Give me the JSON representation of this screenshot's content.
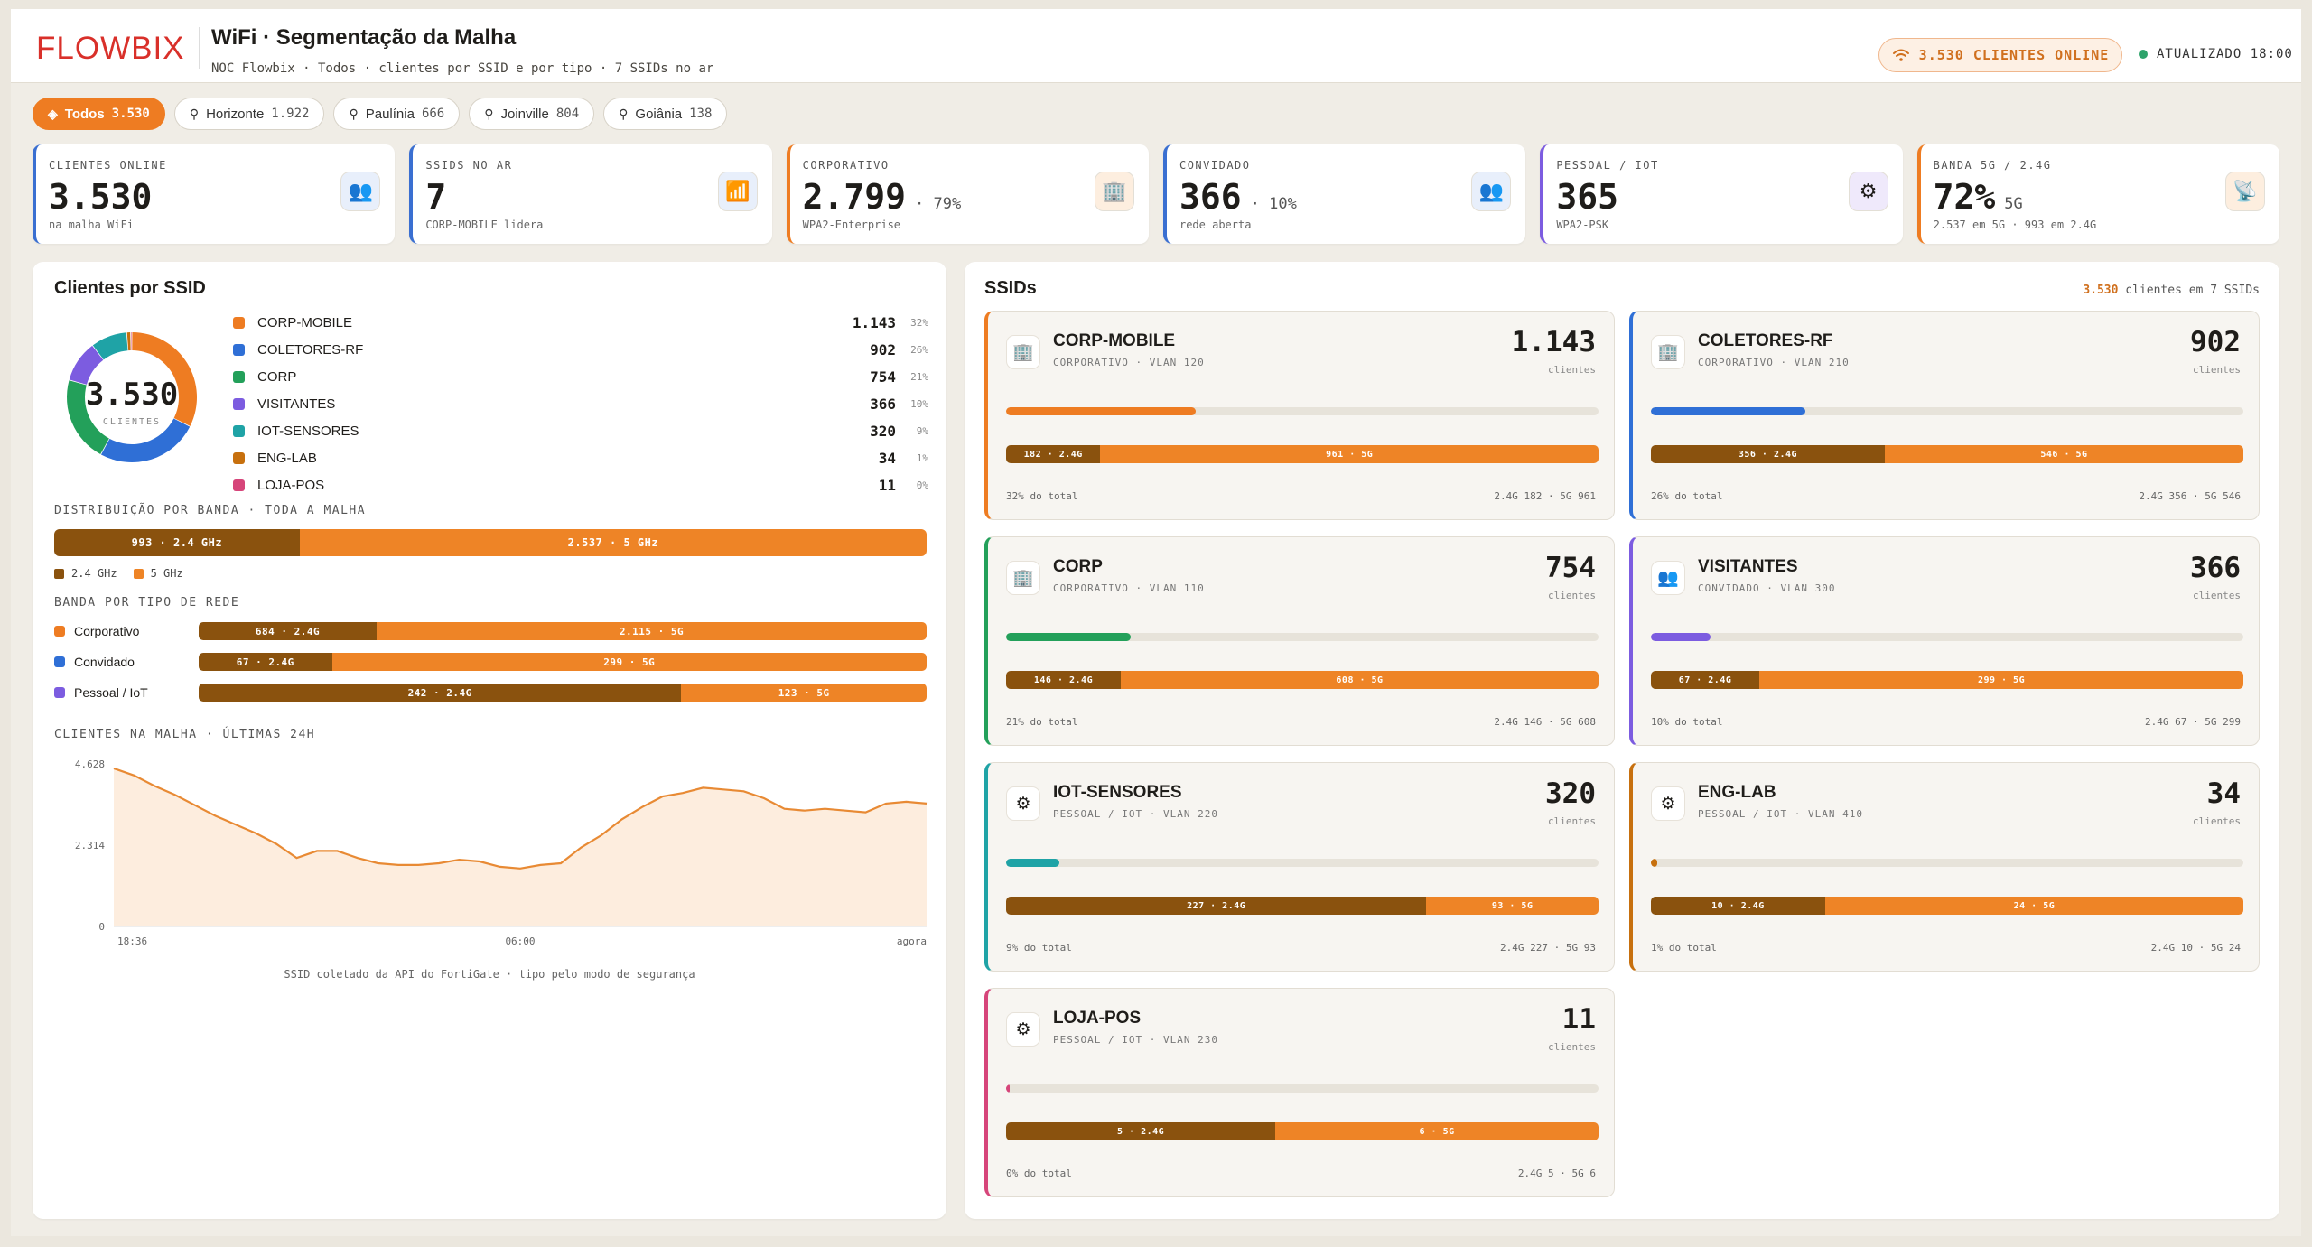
{
  "header": {
    "logo": "FLOWBIX",
    "title": "WiFi · Segmentação da Malha",
    "subtitle": "NOC Flowbix · Todos · clientes por SSID e por tipo · 7 SSIDs no ar",
    "online_pill": "3.530 CLIENTES ONLINE",
    "updated": "ATUALIZADO 18:00"
  },
  "filters": [
    {
      "label": "Todos",
      "count": "3.530",
      "icon": "layers-icon",
      "active": true
    },
    {
      "label": "Horizonte",
      "count": "1.922",
      "icon": "pin-icon"
    },
    {
      "label": "Paulínia",
      "count": "666",
      "icon": "pin-icon"
    },
    {
      "label": "Joinville",
      "count": "804",
      "icon": "pin-icon"
    },
    {
      "label": "Goiânia",
      "count": "138",
      "icon": "pin-icon"
    }
  ],
  "kpis": [
    {
      "label": "CLIENTES ONLINE",
      "value": "3.530",
      "extra": "",
      "sub": "na malha WiFi",
      "icon": "users-icon",
      "color": "#3a6fd1"
    },
    {
      "label": "SSIDS NO AR",
      "value": "7",
      "extra": "",
      "sub": "CORP-MOBILE lidera",
      "icon": "wifi-icon",
      "color": "#3a6fd1"
    },
    {
      "label": "CORPORATIVO",
      "value": "2.799",
      "extra": "· 79%",
      "sub": "WPA2-Enterprise",
      "icon": "building-icon",
      "color": "#ee7c22"
    },
    {
      "label": "CONVIDADO",
      "value": "366",
      "extra": "· 10%",
      "sub": "rede aberta",
      "icon": "guests-icon",
      "color": "#3a6fd1"
    },
    {
      "label": "PESSOAL / IOT",
      "value": "365",
      "extra": "",
      "sub": "WPA2-PSK",
      "icon": "chip-icon",
      "color": "#7c5ce0"
    },
    {
      "label": "BANDA 5G / 2.4G",
      "value": "72%",
      "extra": "5G",
      "sub": "2.537 em 5G · 993 em 2.4G",
      "icon": "antenna-icon",
      "color": "#ee7c22"
    }
  ],
  "left": {
    "title": "Clientes por SSID",
    "donut_value": "3.530",
    "donut_label": "CLIENTES",
    "ssids": [
      {
        "name": "CORP-MOBILE",
        "value": "1.143",
        "pct": "32%",
        "n": 1143,
        "color": "#ee7c22"
      },
      {
        "name": "COLETORES-RF",
        "value": "902",
        "pct": "26%",
        "n": 902,
        "color": "#2f6fd6"
      },
      {
        "name": "CORP",
        "value": "754",
        "pct": "21%",
        "n": 754,
        "color": "#23a05a"
      },
      {
        "name": "VISITANTES",
        "value": "366",
        "pct": "10%",
        "n": 366,
        "color": "#7c5ce0"
      },
      {
        "name": "IOT-SENSORES",
        "value": "320",
        "pct": "9%",
        "n": 320,
        "color": "#1fa3a6"
      },
      {
        "name": "ENG-LAB",
        "value": "34",
        "pct": "1%",
        "n": 34,
        "color": "#c7700e"
      },
      {
        "name": "LOJA-POS",
        "value": "11",
        "pct": "0%",
        "n": 11,
        "color": "#d6457a"
      }
    ],
    "band_title": "DISTRIBUIÇÃO POR BANDA · TODA A MALHA",
    "band": {
      "b24": 993,
      "b5": 2537,
      "b24_label": "993 · 2.4 GHz",
      "b5_label": "2.537 · 5 GHz"
    },
    "band_legend": [
      "2.4 GHz",
      "5 GHz"
    ],
    "types_title": "BANDA POR TIPO DE REDE",
    "types": [
      {
        "name": "Corporativo",
        "color": "#ee7c22",
        "b24": 684,
        "b5": 2115,
        "l24": "684 · 2.4G",
        "l5": "2.115 · 5G"
      },
      {
        "name": "Convidado",
        "color": "#2f6fd6",
        "b24": 67,
        "b5": 299,
        "l24": "67 · 2.4G",
        "l5": "299 · 5G"
      },
      {
        "name": "Pessoal / IoT",
        "color": "#7c5ce0",
        "b24": 242,
        "b5": 123,
        "l24": "242 · 2.4G",
        "l5": "123 · 5G"
      }
    ],
    "trend_title": "CLIENTES NA MALHA · ÚLTIMAS 24H",
    "footnote": "SSID coletado da API do FortiGate · tipo pelo modo de segurança"
  },
  "chart_data": {
    "type": "area",
    "title": "CLIENTES NA MALHA · ÚLTIMAS 24H",
    "x_ticks": [
      "18:36",
      "06:00",
      "agora"
    ],
    "y_ticks": [
      "4.628",
      "2.314",
      "0"
    ],
    "ylim": [
      0,
      4628
    ],
    "y": [
      4500,
      4300,
      4000,
      3750,
      3450,
      3150,
      2900,
      2650,
      2350,
      1950,
      2150,
      2150,
      1950,
      1800,
      1750,
      1750,
      1800,
      1900,
      1850,
      1700,
      1650,
      1750,
      1800,
      2250,
      2600,
      3050,
      3400,
      3700,
      3800,
      3950,
      3900,
      3850,
      3650,
      3350,
      3300,
      3350,
      3300,
      3250,
      3500,
      3550,
      3500
    ],
    "grid": false
  },
  "right": {
    "title": "SSIDs",
    "summary_num": "3.530",
    "summary_text": "clientes em 7 SSIDs",
    "cards": [
      {
        "name": "CORP-MOBILE",
        "sub": "CORPORATIVO · VLAN 120",
        "value": "1.143",
        "unit": "clientes",
        "share": 0.32,
        "b24": 182,
        "b5": 961,
        "l24": "182 · 2.4G",
        "l5": "961 · 5G",
        "foot": "32% do total",
        "foot2": "2.4G 182 · 5G 961",
        "color": "#ee7c22",
        "icon": "building-icon"
      },
      {
        "name": "COLETORES-RF",
        "sub": "CORPORATIVO · VLAN 210",
        "value": "902",
        "unit": "clientes",
        "share": 0.26,
        "b24": 356,
        "b5": 546,
        "l24": "356 · 2.4G",
        "l5": "546 · 5G",
        "foot": "26% do total",
        "foot2": "2.4G 356 · 5G 546",
        "color": "#2f6fd6",
        "icon": "building-icon"
      },
      {
        "name": "CORP",
        "sub": "CORPORATIVO · VLAN 110",
        "value": "754",
        "unit": "clientes",
        "share": 0.21,
        "b24": 146,
        "b5": 608,
        "l24": "146 · 2.4G",
        "l5": "608 · 5G",
        "foot": "21% do total",
        "foot2": "2.4G 146 · 5G 608",
        "color": "#23a05a",
        "icon": "building-icon"
      },
      {
        "name": "VISITANTES",
        "sub": "CONVIDADO · VLAN 300",
        "value": "366",
        "unit": "clientes",
        "share": 0.1,
        "b24": 67,
        "b5": 299,
        "l24": "67 · 2.4G",
        "l5": "299 · 5G",
        "foot": "10% do total",
        "foot2": "2.4G 67 · 5G 299",
        "color": "#7c5ce0",
        "icon": "guests-icon"
      },
      {
        "name": "IOT-SENSORES",
        "sub": "PESSOAL / IOT · VLAN 220",
        "value": "320",
        "unit": "clientes",
        "share": 0.09,
        "b24": 227,
        "b5": 93,
        "l24": "227 · 2.4G",
        "l5": "93 · 5G",
        "foot": "9% do total",
        "foot2": "2.4G 227 · 5G 93",
        "color": "#1fa3a6",
        "icon": "chip-icon"
      },
      {
        "name": "ENG-LAB",
        "sub": "PESSOAL / IOT · VLAN 410",
        "value": "34",
        "unit": "clientes",
        "share": 0.01,
        "b24": 10,
        "b5": 24,
        "l24": "10 · 2.4G",
        "l5": "24 · 5G",
        "foot": "1% do total",
        "foot2": "2.4G 10 · 5G 24",
        "color": "#c7700e",
        "icon": "chip-icon"
      },
      {
        "name": "LOJA-POS",
        "sub": "PESSOAL / IOT · VLAN 230",
        "value": "11",
        "unit": "clientes",
        "share": 0.003,
        "b24": 5,
        "b5": 6,
        "l24": "5 · 2.4G",
        "l5": "6 · 5G",
        "foot": "0% do total",
        "foot2": "2.4G 5 · 5G 6",
        "color": "#d6457a",
        "icon": "chip-icon"
      }
    ]
  }
}
